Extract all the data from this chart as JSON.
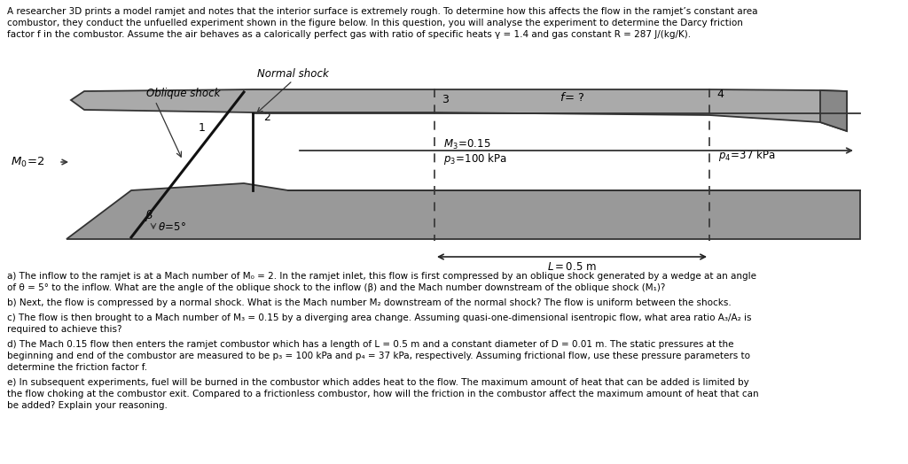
{
  "bg_color": "#ffffff",
  "text_color": "#000000",
  "gray_fill": "#aaaaaa",
  "gray_dark": "#707070",
  "gray_light": "#cccccc",
  "intro_lines": [
    "A researcher 3D prints a model ramjet and notes that the interior surface is extremely rough. To determine how this affects the flow in the ramjet’s constant area",
    "combustor, they conduct the unfuelled experiment shown in the figure below. In this question, you will analyse the experiment to determine the Darcy friction",
    "factor f in the combustor. Assume the air behaves as a calorically perfect gas with ratio of specific heats γ = 1.4 and gas constant R = 287 J/(kg/K)."
  ],
  "q_a": [
    "a) The inflow to the ramjet is at a Mach number of M₀ = 2. In the ramjet inlet, this flow is first compressed by an oblique shock generated by a wedge at an angle",
    "of θ = 5° to the inflow. What are the angle of the oblique shock to the inflow (β) and the Mach number downstream of the oblique shock (M₁)?"
  ],
  "q_b": [
    "b) Next, the flow is compressed by a normal shock. What is the Mach number M₂ downstream of the normal shock? The flow is uniform between the shocks."
  ],
  "q_c": [
    "c) The flow is then brought to a Mach number of M₃ = 0.15 by a diverging area change. Assuming quasi-one-dimensional isentropic flow, what area ratio A₃/A₂ is",
    "required to achieve this?"
  ],
  "q_d": [
    "d) The Mach 0.15 flow then enters the ramjet combustor which has a length of L = 0.5 m and a constant diameter of D = 0.01 m. The static pressures at the",
    "beginning and end of the combustor are measured to be p₃ = 100 kPa and p₄ = 37 kPa, respectively. Assuming frictional flow, use these pressure parameters to",
    "determine the friction factor f."
  ],
  "q_e": [
    "e) In subsequent experiments, fuel will be burned in the combustor which addes heat to the flow. The maximum amount of heat that can be added is limited by",
    "the flow choking at the combustor exit. Compared to a frictionless combustor, how will the friction in the combustor affect the maximum amount of heat that can",
    "be added? Explain your reasoning."
  ]
}
